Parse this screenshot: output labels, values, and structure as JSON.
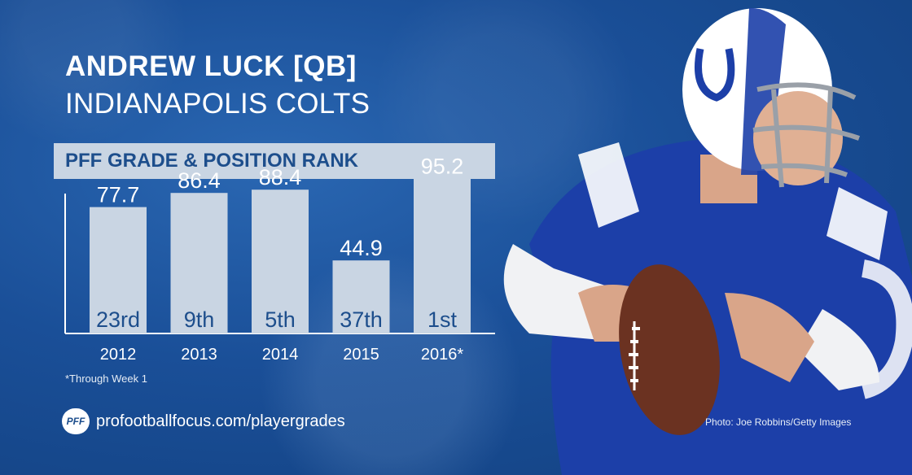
{
  "header": {
    "name": "ANDREW LUCK [QB]",
    "team": "INDIANAPOLIS COLTS"
  },
  "section_title": "PFF GRADE & POSITION RANK",
  "footnote": "*Through Week 1",
  "brand": {
    "logo_text": "PFF",
    "url": "profootballfocus.com/playergrades"
  },
  "photo_credit": "Photo: Joe Robbins/Getty Images",
  "colors": {
    "bar_fill": "#c9d5e3",
    "rank_text": "#1d4e8c",
    "background": "#1a4f98",
    "jersey_blue": "#1c3fa8"
  },
  "chart_data": {
    "type": "bar",
    "categories": [
      "2012",
      "2013",
      "2014",
      "2015",
      "2016*"
    ],
    "series": [
      {
        "values": [
          77.7,
          86.4,
          88.4,
          44.9,
          95.2
        ]
      }
    ],
    "value_labels": [
      "77.7",
      "86.4",
      "88.4",
      "44.9",
      "95.2"
    ],
    "position_ranks": [
      "23rd",
      "9th",
      "5th",
      "37th",
      "1st"
    ],
    "title": "PFF GRADE & POSITION RANK",
    "ylim": [
      0,
      100
    ],
    "grid": false
  }
}
